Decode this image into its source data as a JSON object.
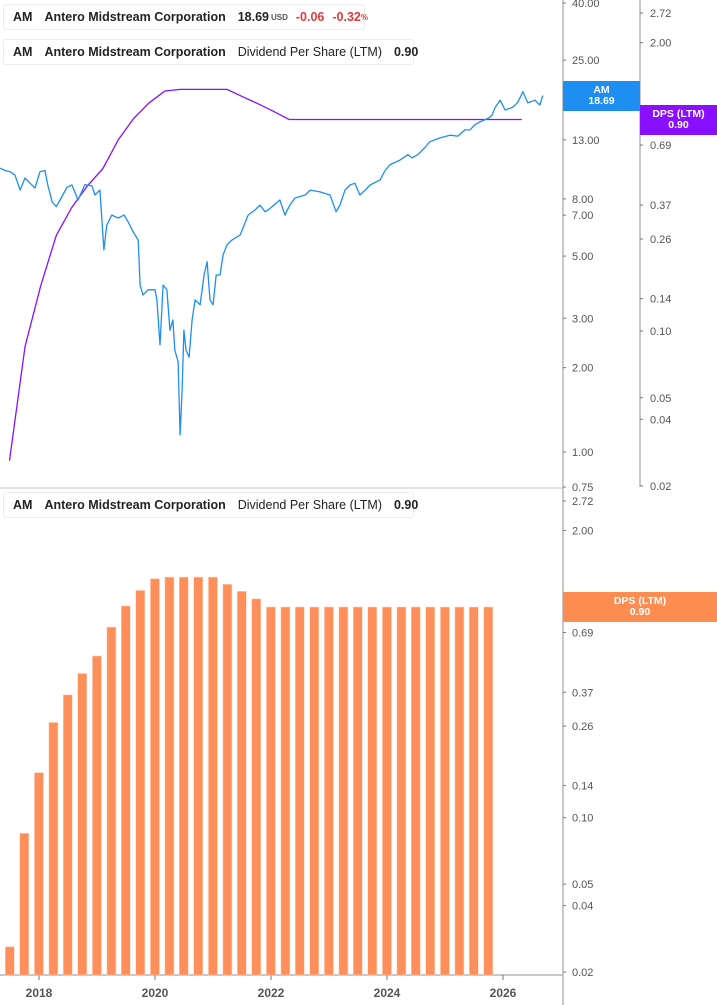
{
  "colors": {
    "price": "#1e8ef2",
    "dps_line": "#8a0fff",
    "dps_bar": "#fe8f5a",
    "negative": "#e03a3a"
  },
  "legend_price": {
    "ticker": "AM",
    "name": "Antero Midstream Corporation",
    "price": "18.69",
    "currency": "USD",
    "change": "-0.06",
    "change_pct": "-0.32",
    "pct_sign": "%"
  },
  "legend_dps": {
    "ticker": "AM",
    "name": "Antero Midstream Corporation",
    "metric": "Dividend Per Share (LTM)",
    "value": "0.90"
  },
  "legend_dps_bottom": {
    "ticker": "AM",
    "name": "Antero Midstream Corporation",
    "metric": "Dividend Per Share (LTM)",
    "value": "0.90"
  },
  "badges": {
    "price": {
      "label": "AM",
      "value": "18.69"
    },
    "dps_top": {
      "label": "DPS (LTM)",
      "value": "0.90"
    },
    "dps_bottom": {
      "label": "DPS (LTM)",
      "value": "0.90"
    }
  },
  "chart_data": [
    {
      "type": "line",
      "scale": "log",
      "series": [
        {
          "axis": "left",
          "color": "#1e8ef2",
          "points": [
            [
              "2017-05-05",
              10.3
            ],
            [
              "2017-06-04",
              10.1
            ],
            [
              "2017-07-03",
              10.0
            ],
            [
              "2017-08-02",
              9.7
            ],
            [
              "2017-09-01",
              8.6
            ],
            [
              "2017-09-30",
              9.5
            ],
            [
              "2017-10-29",
              9.1
            ],
            [
              "2017-11-28",
              8.75
            ],
            [
              "2017-12-27",
              10.0
            ],
            [
              "2018-01-25",
              10.1
            ],
            [
              "2018-02-12",
              8.97
            ],
            [
              "2018-03-07",
              7.8
            ],
            [
              "2018-03-31",
              7.5
            ],
            [
              "2018-04-23",
              7.93
            ],
            [
              "2018-06-03",
              8.8
            ],
            [
              "2018-07-02",
              8.97
            ],
            [
              "2018-08-07",
              7.93
            ],
            [
              "2018-09-17",
              9.0
            ],
            [
              "2018-10-28",
              8.9
            ],
            [
              "2018-11-15",
              8.26
            ],
            [
              "2018-12-14",
              8.6
            ],
            [
              "2019-01-07",
              5.26
            ],
            [
              "2019-01-24",
              6.46
            ],
            [
              "2019-02-23",
              7.0
            ],
            [
              "2019-03-30",
              6.84
            ],
            [
              "2019-05-04",
              7.0
            ],
            [
              "2019-05-28",
              6.62
            ],
            [
              "2019-06-27",
              6.1
            ],
            [
              "2019-07-26",
              5.7
            ],
            [
              "2019-08-07",
              3.94
            ],
            [
              "2019-08-24",
              3.63
            ],
            [
              "2019-09-23",
              3.79
            ],
            [
              "2019-11-03",
              3.79
            ],
            [
              "2019-11-14",
              3.49
            ],
            [
              "2019-12-02",
              2.41
            ],
            [
              "2019-12-20",
              3.94
            ],
            [
              "2020-01-12",
              3.79
            ],
            [
              "2020-01-30",
              2.72
            ],
            [
              "2020-02-17",
              2.96
            ],
            [
              "2020-02-28",
              2.31
            ],
            [
              "2020-03-17",
              2.1
            ],
            [
              "2020-03-29",
              1.15
            ],
            [
              "2020-04-10",
              1.66
            ],
            [
              "2020-04-21",
              2.72
            ],
            [
              "2020-05-03",
              2.31
            ],
            [
              "2020-05-21",
              2.18
            ],
            [
              "2020-06-08",
              2.96
            ],
            [
              "2020-06-26",
              3.49
            ],
            [
              "2020-07-25",
              3.35
            ],
            [
              "2020-08-18",
              4.28
            ],
            [
              "2020-09-05",
              4.77
            ],
            [
              "2020-09-22",
              3.49
            ],
            [
              "2020-10-10",
              3.35
            ],
            [
              "2020-10-28",
              4.28
            ],
            [
              "2020-11-20",
              4.28
            ],
            [
              "2020-12-08",
              5.05
            ],
            [
              "2020-12-31",
              5.48
            ],
            [
              "2021-01-29",
              5.7
            ],
            [
              "2021-03-17",
              5.95
            ],
            [
              "2021-05-03",
              7.0
            ],
            [
              "2021-06-13",
              7.3
            ],
            [
              "2021-07-12",
              7.6
            ],
            [
              "2021-08-11",
              7.2
            ],
            [
              "2021-08-29",
              7.3
            ],
            [
              "2021-11-07",
              7.93
            ],
            [
              "2021-12-06",
              7.0
            ],
            [
              "2022-01-05",
              7.6
            ],
            [
              "2022-02-04",
              8.06
            ],
            [
              "2022-04-04",
              8.26
            ],
            [
              "2022-05-03",
              8.6
            ],
            [
              "2022-06-30",
              8.47
            ],
            [
              "2022-08-28",
              8.26
            ],
            [
              "2022-10-03",
              7.2
            ],
            [
              "2022-10-26",
              7.6
            ],
            [
              "2022-11-25",
              8.6
            ],
            [
              "2022-12-24",
              8.97
            ],
            [
              "2023-01-22",
              9.1
            ],
            [
              "2023-02-21",
              8.26
            ],
            [
              "2023-03-22",
              8.6
            ],
            [
              "2023-04-20",
              8.97
            ],
            [
              "2023-06-18",
              9.35
            ],
            [
              "2023-07-17",
              10.1
            ],
            [
              "2023-08-16",
              10.6
            ],
            [
              "2023-10-13",
              11.0
            ],
            [
              "2023-11-30",
              11.5
            ],
            [
              "2023-12-23",
              11.2
            ],
            [
              "2024-01-27",
              11.5
            ],
            [
              "2024-03-08",
              12.2
            ],
            [
              "2024-04-07",
              12.8
            ],
            [
              "2024-06-05",
              13.2
            ],
            [
              "2024-08-03",
              13.5
            ],
            [
              "2024-09-19",
              13.4
            ],
            [
              "2024-10-30",
              14.1
            ],
            [
              "2024-11-29",
              14.1
            ],
            [
              "2024-12-28",
              14.7
            ],
            [
              "2025-01-26",
              15.06
            ],
            [
              "2025-03-14",
              15.5
            ],
            [
              "2025-04-07",
              15.9
            ],
            [
              "2025-04-24",
              16.9
            ],
            [
              "2025-05-24",
              18.0
            ],
            [
              "2025-06-23",
              16.6
            ],
            [
              "2025-08-08",
              17.0
            ],
            [
              "2025-09-07",
              17.7
            ],
            [
              "2025-10-06",
              19.3
            ],
            [
              "2025-11-04",
              17.6
            ],
            [
              "2025-12-16",
              18.0
            ],
            [
              "2026-01-14",
              17.3
            ],
            [
              "2026-02-01",
              18.69
            ]
          ]
        },
        {
          "axis": "right",
          "color": "#8a0fff",
          "source": "dps"
        }
      ],
      "left_axis": {
        "range": [
          0.75,
          40
        ],
        "ticks": [
          "40.00",
          "25.00",
          "13.00",
          "8.00",
          "7.00",
          "5.00",
          "3.00",
          "2.00",
          "1.00",
          "0.75"
        ]
      },
      "right_axis": {
        "range": [
          0.02,
          2.72
        ],
        "ticks": [
          "2.72",
          "2.00",
          "0.69",
          "0.37",
          "0.26",
          "0.14",
          "0.10",
          "0.05",
          "0.04",
          "0.02"
        ]
      },
      "grid": false
    },
    {
      "type": "bar",
      "scale": "log",
      "categories": [
        "2017-06-30",
        "2017-09-30",
        "2017-12-31",
        "2018-03-31",
        "2018-06-30",
        "2018-09-30",
        "2018-12-31",
        "2019-03-31",
        "2019-06-30",
        "2019-09-30",
        "2019-12-31",
        "2020-03-31",
        "2020-06-30",
        "2020-09-30",
        "2020-12-31",
        "2021-03-31",
        "2021-06-30",
        "2021-09-30",
        "2021-12-31",
        "2022-03-31",
        "2022-06-30",
        "2022-09-30",
        "2022-12-31",
        "2023-03-31",
        "2023-06-30",
        "2023-09-30",
        "2023-12-31",
        "2024-03-31",
        "2024-06-30",
        "2024-09-30",
        "2024-12-31",
        "2025-03-31",
        "2025-06-30",
        "2025-09-30"
      ],
      "values": [
        0.026,
        0.085,
        0.16,
        0.27,
        0.36,
        0.45,
        0.54,
        0.73,
        0.91,
        1.07,
        1.21,
        1.23,
        1.23,
        1.23,
        1.23,
        1.14,
        1.06,
        0.98,
        0.9,
        0.9,
        0.9,
        0.9,
        0.9,
        0.9,
        0.9,
        0.9,
        0.9,
        0.9,
        0.9,
        0.9,
        0.9,
        0.9,
        0.9,
        0.9
      ],
      "y_axis": {
        "range": [
          0.02,
          2.72
        ],
        "ticks": [
          "2.72",
          "2.00",
          "1.00",
          "0.69",
          "0.37",
          "0.26",
          "0.14",
          "0.10",
          "0.05",
          "0.04",
          "0.02"
        ]
      },
      "x_ticks": [
        "2018",
        "2020",
        "2022",
        "2024",
        "2026"
      ],
      "grid": false
    }
  ]
}
